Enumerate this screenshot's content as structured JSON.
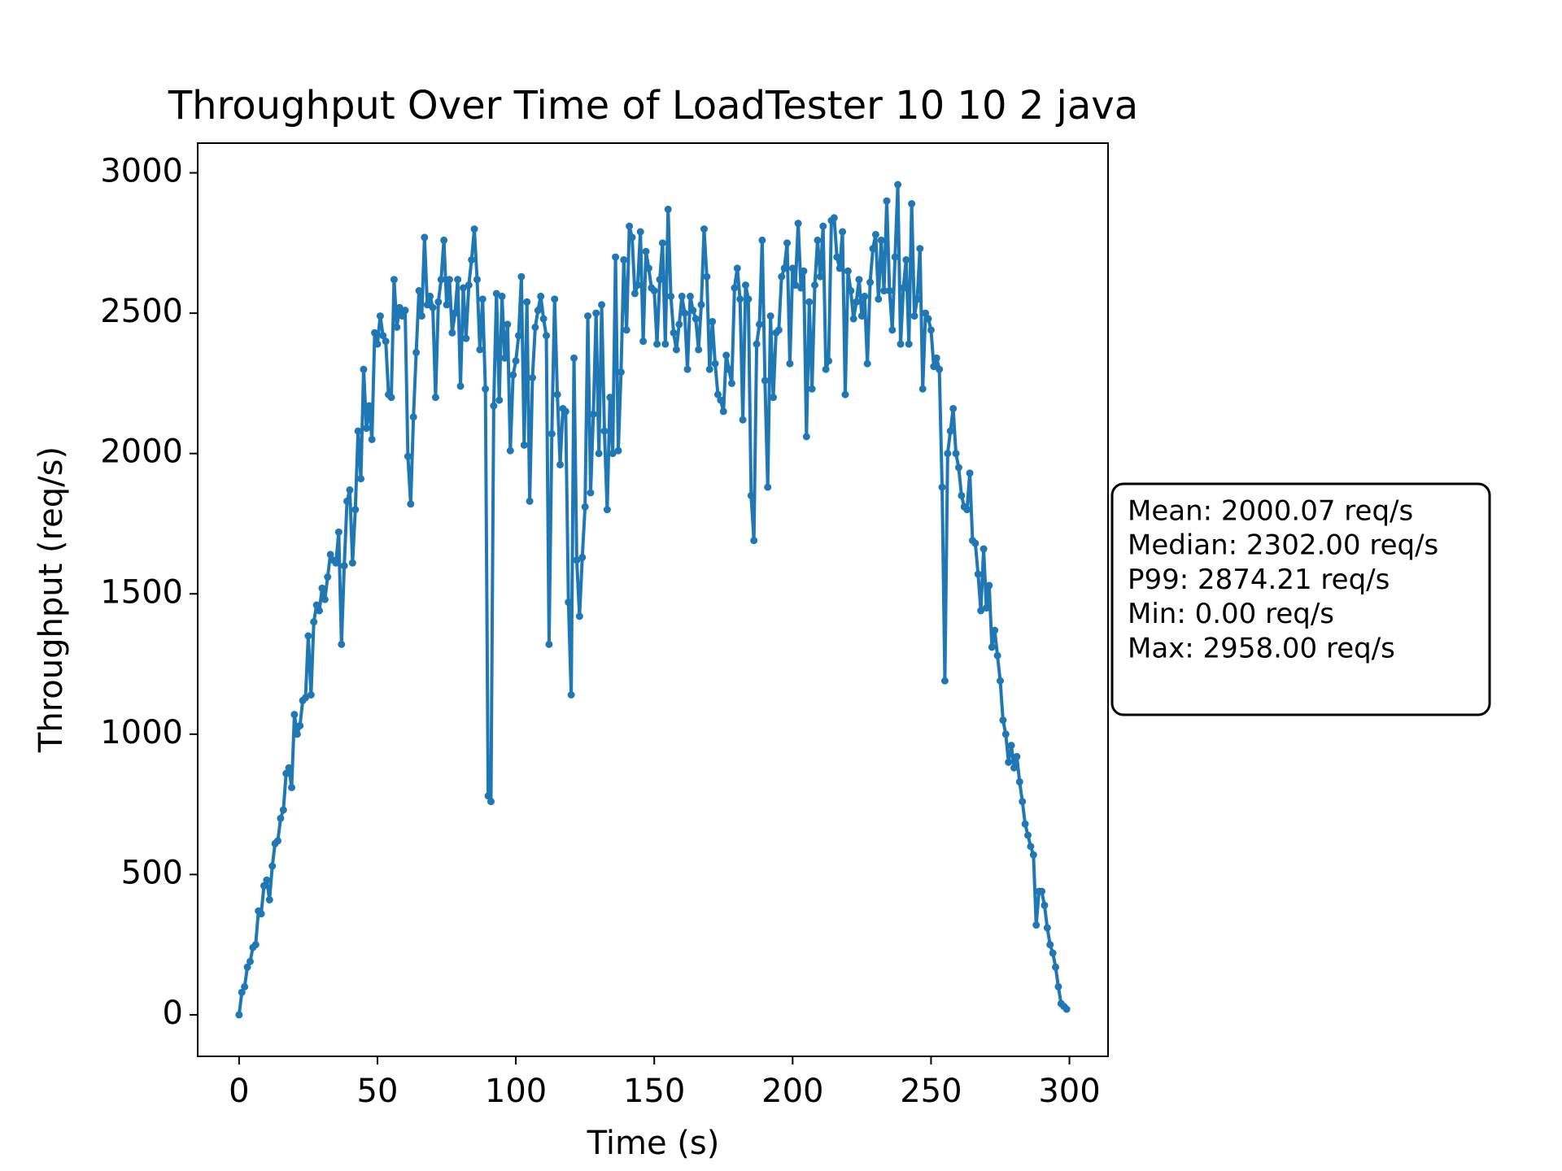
{
  "chart_data": {
    "type": "line",
    "title": "Throughput Over Time of LoadTester 10 10 2 java",
    "x_label": "Time (s)",
    "y_label": "Throughput (req/s)",
    "color": "#1f77b4",
    "x": [
      0,
      1,
      2,
      3,
      4,
      5,
      6,
      7,
      8,
      9,
      10,
      11,
      12,
      13,
      14,
      15,
      16,
      17,
      18,
      19,
      20,
      21,
      22,
      23,
      24,
      25,
      26,
      27,
      28,
      29,
      30,
      31,
      32,
      33,
      34,
      35,
      36,
      37,
      38,
      39,
      40,
      41,
      42,
      43,
      44,
      45,
      46,
      47,
      48,
      49,
      50,
      51,
      52,
      53,
      54,
      55,
      56,
      57,
      58,
      59,
      60,
      61,
      62,
      63,
      64,
      65,
      66,
      67,
      68,
      69,
      70,
      71,
      72,
      73,
      74,
      75,
      76,
      77,
      78,
      79,
      80,
      81,
      82,
      83,
      84,
      85,
      86,
      87,
      88,
      89,
      90,
      91,
      92,
      93,
      94,
      95,
      96,
      97,
      98,
      99,
      100,
      101,
      102,
      103,
      104,
      105,
      106,
      107,
      108,
      109,
      110,
      111,
      112,
      113,
      114,
      115,
      116,
      117,
      118,
      119,
      120,
      121,
      122,
      123,
      124,
      125,
      126,
      127,
      128,
      129,
      130,
      131,
      132,
      133,
      134,
      135,
      136,
      137,
      138,
      139,
      140,
      141,
      142,
      143,
      144,
      145,
      146,
      147,
      148,
      149,
      150,
      151,
      152,
      153,
      154,
      155,
      156,
      157,
      158,
      159,
      160,
      161,
      162,
      163,
      164,
      165,
      166,
      167,
      168,
      169,
      170,
      171,
      172,
      173,
      174,
      175,
      176,
      177,
      178,
      179,
      180,
      181,
      182,
      183,
      184,
      185,
      186,
      187,
      188,
      189,
      190,
      191,
      192,
      193,
      194,
      195,
      196,
      197,
      198,
      199,
      200,
      201,
      202,
      203,
      204,
      205,
      206,
      207,
      208,
      209,
      210,
      211,
      212,
      213,
      214,
      215,
      216,
      217,
      218,
      219,
      220,
      221,
      222,
      223,
      224,
      225,
      226,
      227,
      228,
      229,
      230,
      231,
      232,
      233,
      234,
      235,
      236,
      237,
      238,
      239,
      240,
      241,
      242,
      243,
      244,
      245,
      246,
      247,
      248,
      249,
      250,
      251,
      252,
      253,
      254,
      255,
      256,
      257,
      258,
      259,
      260,
      261,
      262,
      263,
      264,
      265,
      266,
      267,
      268,
      269,
      270,
      271,
      272,
      273,
      274,
      275,
      276,
      277,
      278,
      279,
      280,
      281,
      282,
      283,
      284,
      285,
      286,
      287,
      288,
      289,
      290,
      291,
      292,
      293,
      294,
      295,
      296,
      297,
      298,
      299
    ],
    "values": [
      0,
      80,
      100,
      170,
      190,
      240,
      250,
      370,
      360,
      460,
      480,
      410,
      530,
      610,
      620,
      700,
      730,
      860,
      880,
      810,
      1070,
      1000,
      1030,
      1120,
      1130,
      1350,
      1140,
      1400,
      1460,
      1440,
      1520,
      1480,
      1560,
      1640,
      1620,
      1610,
      1720,
      1320,
      1600,
      1830,
      1870,
      1610,
      1800,
      2080,
      1910,
      2300,
      2090,
      2170,
      2050,
      2430,
      2390,
      2490,
      2420,
      2400,
      2210,
      2200,
      2620,
      2450,
      2520,
      2490,
      2510,
      1990,
      1820,
      2130,
      2360,
      2580,
      2490,
      2770,
      2530,
      2560,
      2520,
      2200,
      2540,
      2620,
      2760,
      2530,
      2620,
      2430,
      2500,
      2620,
      2240,
      2590,
      2410,
      2600,
      2690,
      2800,
      2620,
      2370,
      2550,
      2230,
      780,
      760,
      2170,
      2570,
      2190,
      2560,
      2340,
      2460,
      2010,
      2280,
      2330,
      2420,
      2630,
      2030,
      2540,
      1830,
      2270,
      2450,
      2510,
      2560,
      2480,
      2420,
      1320,
      2070,
      2550,
      2210,
      1960,
      2160,
      2150,
      1470,
      1140,
      2340,
      1620,
      1420,
      1630,
      1810,
      2490,
      1860,
      2140,
      2500,
      2000,
      2530,
      2080,
      1800,
      2200,
      2000,
      2700,
      2010,
      2290,
      2690,
      2440,
      2810,
      2770,
      2570,
      2600,
      2790,
      2400,
      2720,
      2660,
      2590,
      2580,
      2390,
      2620,
      2750,
      2390,
      2870,
      2560,
      2430,
      2370,
      2460,
      2560,
      2500,
      2300,
      2560,
      2510,
      2480,
      2370,
      2530,
      2800,
      2630,
      2300,
      2470,
      2320,
      2210,
      2190,
      2150,
      2350,
      2300,
      2250,
      2590,
      2660,
      2550,
      2120,
      2600,
      2550,
      1850,
      1690,
      2390,
      2460,
      2760,
      2260,
      1880,
      2490,
      2200,
      2430,
      2440,
      2630,
      2660,
      2750,
      2320,
      2660,
      2600,
      2820,
      2590,
      2650,
      2060,
      2540,
      2230,
      2600,
      2760,
      2630,
      2810,
      2300,
      2330,
      2830,
      2840,
      2700,
      2660,
      2790,
      2210,
      2650,
      2580,
      2480,
      2540,
      2620,
      2490,
      2560,
      2320,
      2610,
      2730,
      2780,
      2550,
      2760,
      2580,
      2900,
      2580,
      2440,
      2700,
      2958,
      2390,
      2590,
      2690,
      2390,
      2890,
      2490,
      2550,
      2730,
      2230,
      2500,
      2480,
      2440,
      2310,
      2340,
      2300,
      1880,
      1190,
      2000,
      2080,
      2160,
      2000,
      1950,
      1850,
      1810,
      1800,
      1930,
      1690,
      1680,
      1570,
      1440,
      1660,
      1450,
      1530,
      1310,
      1370,
      1280,
      1190,
      1050,
      1000,
      900,
      960,
      880,
      920,
      830,
      760,
      680,
      640,
      600,
      570,
      320,
      440,
      440,
      390,
      310,
      250,
      220,
      170,
      100,
      40,
      30,
      20
    ],
    "xlim": [
      -14.95,
      313.95
    ],
    "ylim": [
      -147.9,
      3105.9
    ],
    "xticks": [
      0,
      50,
      100,
      150,
      200,
      250,
      300
    ],
    "yticks": [
      0,
      500,
      1000,
      1500,
      2000,
      2500,
      3000
    ],
    "annotations": [
      "Mean: 2000.07 req/s",
      "Median: 2302.00 req/s",
      "P99: 2874.21 req/s",
      "Min: 0.00 req/s",
      "Max: 2958.00 req/s"
    ]
  }
}
